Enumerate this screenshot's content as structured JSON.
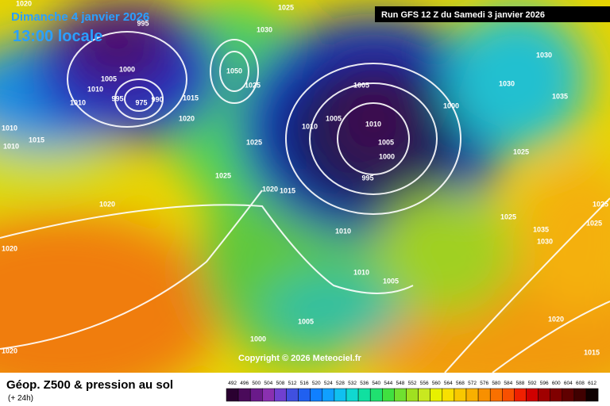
{
  "header": {
    "date": "Dimanche 4 janvier 2026",
    "time": "13:00 locale",
    "run": "Run GFS 12 Z du Samedi 3 janvier 2026",
    "copyright": "Copyright © 2026 Meteociel.fr"
  },
  "footer": {
    "title": "Géop. Z500 & pression au sol",
    "lead": "(+ 24h)"
  },
  "legend": {
    "scale": [
      492,
      496,
      500,
      504,
      508,
      512,
      516,
      520,
      524,
      528,
      532,
      536,
      540,
      544,
      548,
      552,
      556,
      560,
      564,
      568,
      572,
      576,
      580,
      584,
      588,
      592,
      596,
      600,
      604,
      608,
      612
    ]
  },
  "isobars": {
    "labels": [
      "1020",
      "995",
      "1025",
      "1030",
      "1000",
      "1005",
      "1010",
      "1010",
      "995",
      "975",
      "990",
      "1015",
      "1020",
      "1050",
      "1025",
      "1025",
      "1010",
      "1010",
      "1015",
      "1025",
      "1020",
      "1020",
      "1015",
      "1005",
      "1005",
      "1010",
      "1010",
      "1005",
      "1000",
      "995",
      "1000",
      "1030",
      "1030",
      "1035",
      "1025",
      "1025",
      "1035",
      "1030",
      "1025",
      "1025",
      "1010",
      "1010",
      "1005",
      "1005",
      "1000",
      "1020",
      "1020",
      "1020",
      "1015"
    ]
  }
}
